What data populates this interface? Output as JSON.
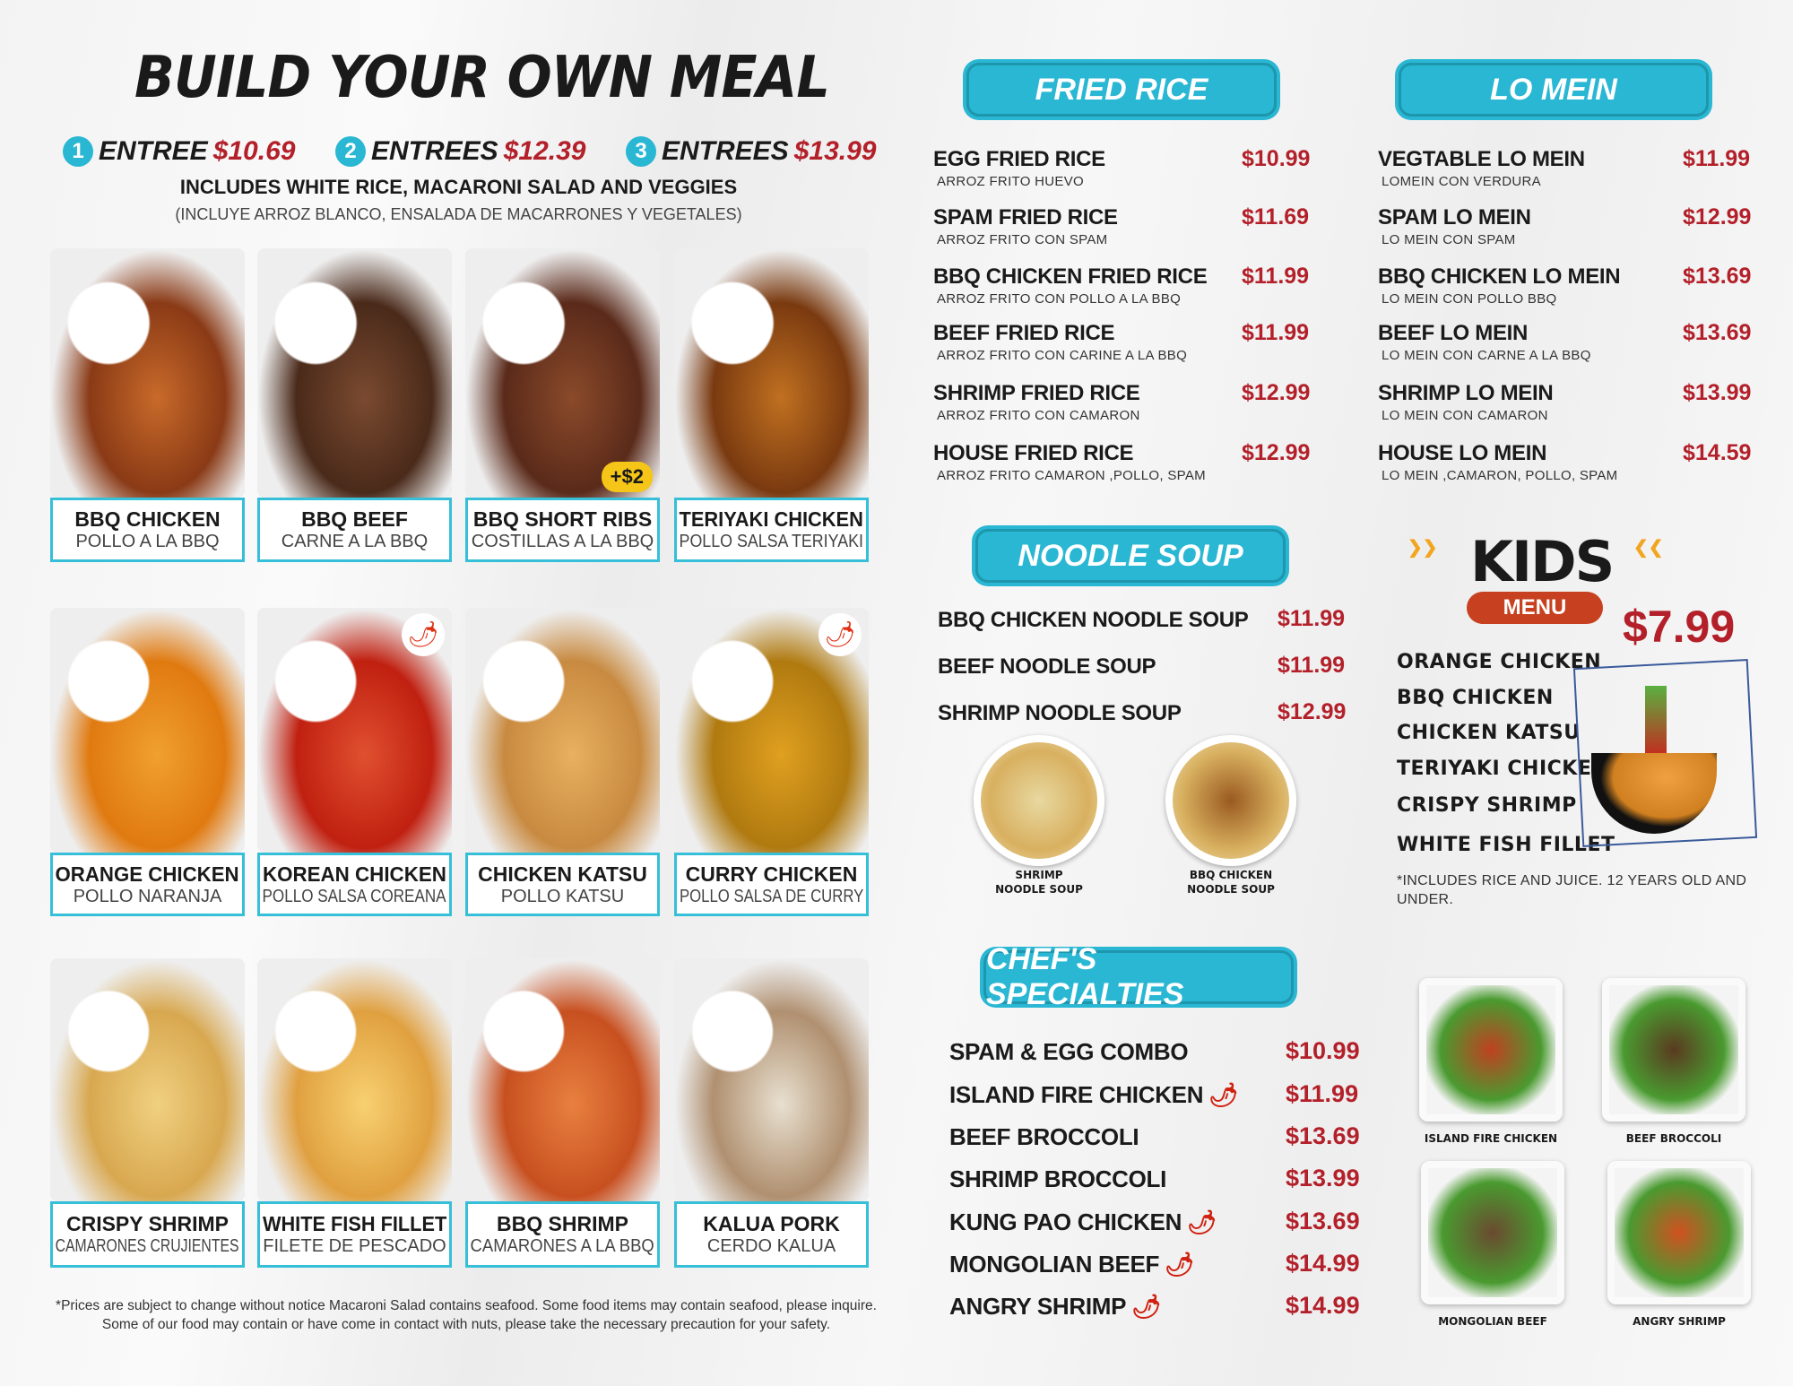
{
  "left": {
    "title": "BUILD YOUR OWN MEAL",
    "entrees": [
      {
        "num": "1",
        "label": "ENTREE",
        "price": "$10.69"
      },
      {
        "num": "2",
        "label": "ENTREES",
        "price": "$12.39"
      },
      {
        "num": "3",
        "label": "ENTREES",
        "price": "$13.99"
      }
    ],
    "includes": "INCLUDES WHITE RICE, MACARONI SALAD AND VEGGIES",
    "includes_es": "(INCLUYE ARROZ BLANCO, ENSALADA DE MACARRONES Y VEGETALES)",
    "items": [
      {
        "name": "BBQ CHICKEN",
        "es": "POLLO A LA BBQ"
      },
      {
        "name": "BBQ BEEF",
        "es": "CARNE A LA BBQ"
      },
      {
        "name": "BBQ SHORT RIBS",
        "es": "COSTILLAS A LA BBQ",
        "badge": "+$2"
      },
      {
        "name": "TERIYAKI CHICKEN",
        "es": "POLLO SALSA TERIYAKI"
      },
      {
        "name": "ORANGE CHICKEN",
        "es": "POLLO NARANJA"
      },
      {
        "name": "KOREAN CHICKEN",
        "es": "POLLO SALSA COREANA",
        "icon": "spicy-icon"
      },
      {
        "name": "CHICKEN KATSU",
        "es": "POLLO KATSU"
      },
      {
        "name": "CURRY CHICKEN",
        "es": "POLLO SALSA DE CURRY",
        "icon": "spicy-icon"
      },
      {
        "name": "CRISPY SHRIMP",
        "es": "CAMARONES CRUJIENTES"
      },
      {
        "name": "WHITE FISH FILLET",
        "es": "FILETE DE PESCADO"
      },
      {
        "name": "BBQ SHRIMP",
        "es": "CAMARONES A LA BBQ"
      },
      {
        "name": "KALUA PORK",
        "es": "CERDO KALUA"
      }
    ],
    "footnote": "*Prices are subject to change without notice Macaroni Salad contains seafood. Some food items may contain seafood, please inquire. Some of our food may contain or have come in contact with nuts, please take the necessary precaution for your safety."
  },
  "fried_rice": {
    "title": "FRIED RICE",
    "items": [
      {
        "name": "EGG FRIED RICE",
        "es": "ARROZ FRITO HUEVO",
        "price": "$10.99"
      },
      {
        "name": "SPAM FRIED RICE",
        "es": "ARROZ FRITO CON SPAM",
        "price": "$11.69"
      },
      {
        "name": "BBQ CHICKEN FRIED RICE",
        "es": "ARROZ FRITO CON POLLO A LA BBQ",
        "price": "$11.99"
      },
      {
        "name": "BEEF FRIED RICE",
        "es": "ARROZ FRITO CON CARINE A LA BBQ",
        "price": "$11.99"
      },
      {
        "name": "SHRIMP FRIED RICE",
        "es": "ARROZ FRITO CON CAMARON",
        "price": "$12.99"
      },
      {
        "name": "HOUSE FRIED RICE",
        "es": "ARROZ FRITO CAMARON ,POLLO, SPAM",
        "price": "$12.99"
      }
    ]
  },
  "lo_mein": {
    "title": "LO MEIN",
    "items": [
      {
        "name": "VEGTABLE LO MEIN",
        "es": "LOMEIN CON VERDURA",
        "price": "$11.99"
      },
      {
        "name": "SPAM LO MEIN",
        "es": "LO MEIN CON SPAM",
        "price": "$12.99"
      },
      {
        "name": "BBQ CHICKEN LO MEIN",
        "es": "LO MEIN CON POLLO BBQ",
        "price": "$13.69"
      },
      {
        "name": "BEEF LO MEIN",
        "es": "LO MEIN CON CARNE A LA BBQ",
        "price": "$13.69"
      },
      {
        "name": "SHRIMP LO MEIN",
        "es": "LO MEIN CON CAMARON",
        "price": "$13.99"
      },
      {
        "name": "HOUSE LO MEIN",
        "es": "LO MEIN  ,CAMARON, POLLO, SPAM",
        "price": "$14.59"
      }
    ]
  },
  "noodle_soup": {
    "title": "NOODLE SOUP",
    "items": [
      {
        "name": "BBQ CHICKEN NOODLE SOUP",
        "price": "$11.99"
      },
      {
        "name": "BEEF NOODLE SOUP",
        "price": "$11.99"
      },
      {
        "name": "SHRIMP NOODLE SOUP",
        "price": "$12.99"
      }
    ],
    "photos": [
      {
        "line1": "SHRIMP",
        "line2": "NOODLE SOUP"
      },
      {
        "line1": "BBQ CHICKEN",
        "line2": "NOODLE SOUP"
      }
    ]
  },
  "kids": {
    "title": "KIDS",
    "subtitle": "MENU",
    "price": "$7.99",
    "items": [
      "ORANGE CHICKEN",
      "BBQ CHICKEN",
      "CHICKEN KATSU",
      "TERIYAKI CHICKEN",
      "CRISPY SHRIMP",
      "WHITE FISH FILLET"
    ],
    "note": "*INCLUDES RICE AND JUICE.  12 YEARS OLD AND UNDER."
  },
  "chefs": {
    "title": "CHEF'S SPECIALTIES",
    "items": [
      {
        "name": "SPAM & EGG COMBO",
        "price": "$10.99",
        "spicy": false
      },
      {
        "name": "ISLAND FIRE CHICKEN",
        "price": "$11.99",
        "spicy": true
      },
      {
        "name": "BEEF BROCCOLI",
        "price": "$13.69",
        "spicy": false
      },
      {
        "name": "SHRIMP BROCCOLI",
        "price": "$13.99",
        "spicy": false
      },
      {
        "name": "KUNG PAO CHICKEN",
        "price": "$13.69",
        "spicy": true
      },
      {
        "name": "MONGOLIAN BEEF",
        "price": "$14.99",
        "spicy": true
      },
      {
        "name": "ANGRY SHRIMP",
        "price": "$14.99",
        "spicy": true
      }
    ],
    "photos": [
      "ISLAND FIRE CHICKEN",
      "BEEF BROCCOLI",
      "MONGOLIAN BEEF",
      "ANGRY SHRIMP"
    ]
  },
  "colors": {
    "accent": "#29b7d3",
    "price": "#b3202a",
    "kids_orange": "#f2a51f",
    "kids_menu": "#c7401f"
  }
}
